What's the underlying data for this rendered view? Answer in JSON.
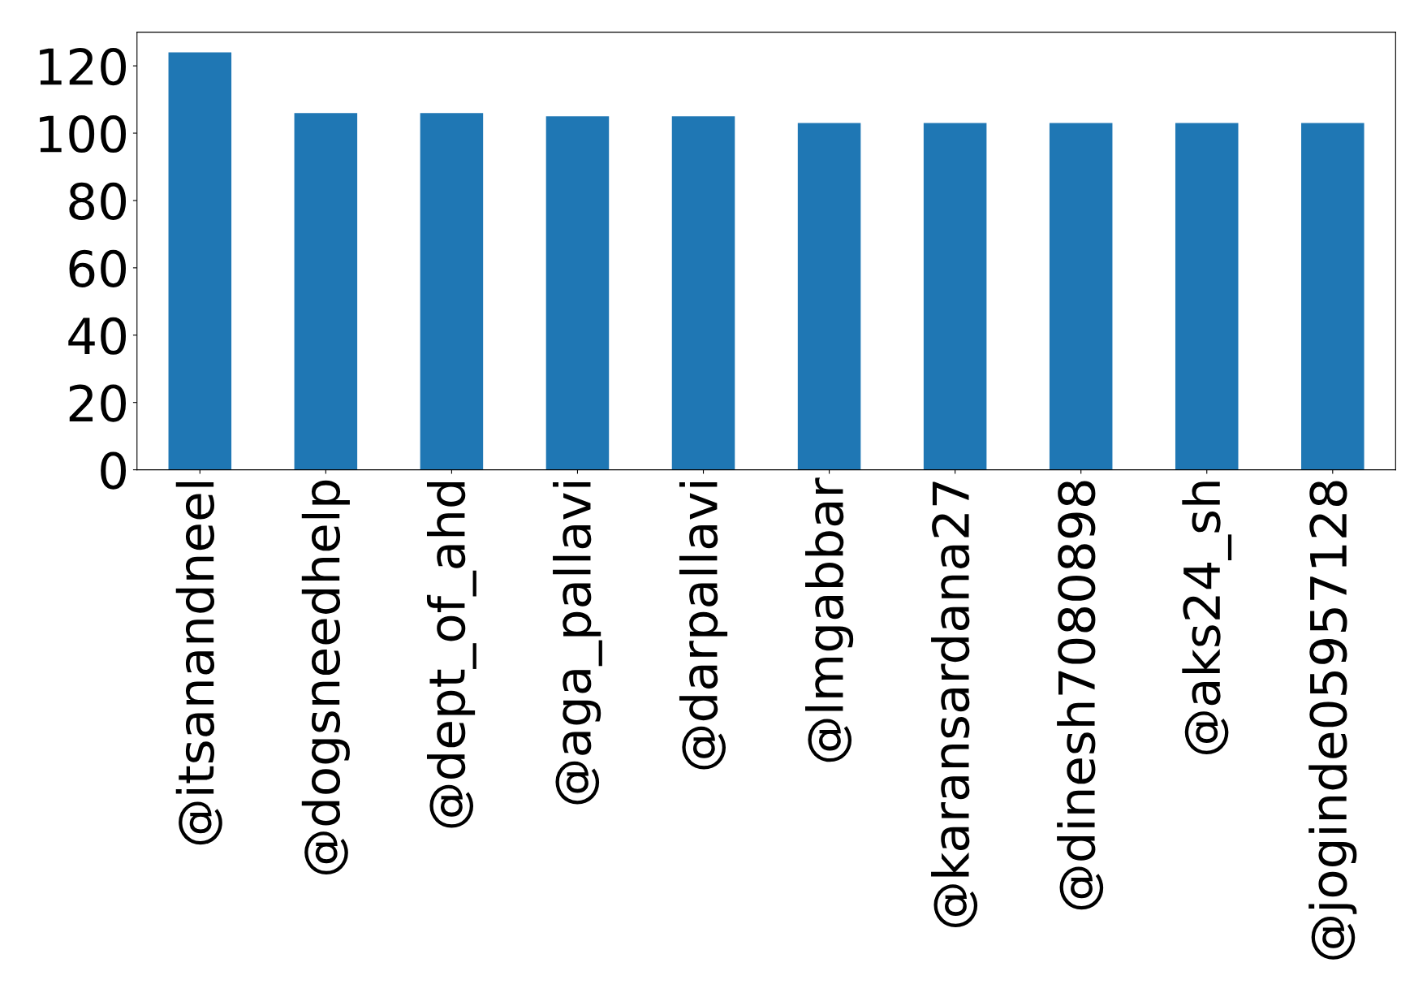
{
  "chart_data": {
    "type": "bar",
    "categories": [
      "@itsanandneel",
      "@dogsneedhelp",
      "@dept_of_ahd",
      "@aga_pallavi",
      "@darpallavi",
      "@lmgabbar",
      "@karansardana27",
      "@dinesh7080898",
      "@aks24_sh",
      "@joginde05957128"
    ],
    "values": [
      124,
      106,
      106,
      105,
      105,
      103,
      103,
      103,
      103,
      103
    ],
    "color": "#1f77b4",
    "ylim": [
      0,
      130
    ],
    "yticks": [
      0,
      20,
      40,
      60,
      80,
      100,
      120
    ],
    "grid": false,
    "legend": false
  }
}
